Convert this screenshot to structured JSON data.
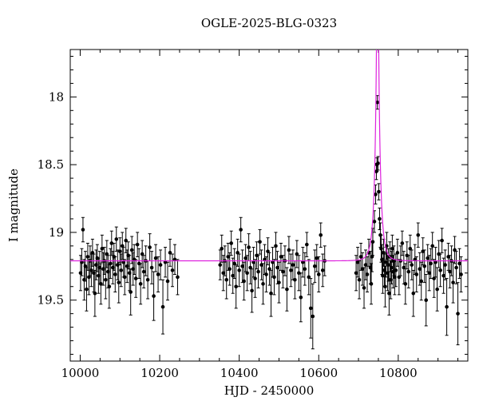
{
  "chart_data": {
    "type": "scatter",
    "title": "OGLE-2025-BLG-0323",
    "xlabel": "HJD - 2450000",
    "ylabel": "I magnitude",
    "xlim": [
      9975,
      10975
    ],
    "ylim_mag": [
      19.95,
      17.65
    ],
    "x_major_ticks": [
      10000,
      10200,
      10400,
      10600,
      10800
    ],
    "x_minor_step": 50,
    "y_major_ticks": [
      18,
      18.5,
      19,
      19.5
    ],
    "y_minor_step": 0.1,
    "grid": false,
    "legend": "none",
    "point_color": "#000000",
    "model_color": "#dd22dd",
    "model": {
      "type": "pspl-microlensing",
      "t0": 10748,
      "tE": 12,
      "u0": 0.02,
      "baseline_mag": 19.21
    },
    "points": [
      [
        10001,
        19.3,
        0.13
      ],
      [
        10004,
        19.22,
        0.1
      ],
      [
        10007,
        18.98,
        0.09
      ],
      [
        10010,
        19.35,
        0.15
      ],
      [
        10013,
        19.25,
        0.11
      ],
      [
        10016,
        19.42,
        0.16
      ],
      [
        10019,
        19.18,
        0.1
      ],
      [
        10022,
        19.33,
        0.13
      ],
      [
        10025,
        19.21,
        0.11
      ],
      [
        10028,
        19.28,
        0.12
      ],
      [
        10031,
        19.15,
        0.1
      ],
      [
        10034,
        19.3,
        0.14
      ],
      [
        10037,
        19.45,
        0.17
      ],
      [
        10040,
        19.24,
        0.11
      ],
      [
        10043,
        19.19,
        0.1
      ],
      [
        10046,
        19.32,
        0.13
      ],
      [
        10049,
        19.26,
        0.12
      ],
      [
        10052,
        19.38,
        0.15
      ],
      [
        10055,
        19.12,
        0.1
      ],
      [
        10058,
        19.27,
        0.12
      ],
      [
        10061,
        19.21,
        0.1
      ],
      [
        10064,
        19.35,
        0.14
      ],
      [
        10067,
        19.16,
        0.1
      ],
      [
        10070,
        19.29,
        0.12
      ],
      [
        10073,
        19.4,
        0.16
      ],
      [
        10076,
        19.23,
        0.11
      ],
      [
        10079,
        19.08,
        0.09
      ],
      [
        10082,
        19.26,
        0.12
      ],
      [
        10085,
        19.18,
        0.1
      ],
      [
        10088,
        19.31,
        0.13
      ],
      [
        10091,
        19.05,
        0.09
      ],
      [
        10094,
        19.24,
        0.11
      ],
      [
        10097,
        19.37,
        0.15
      ],
      [
        10100,
        19.14,
        0.1
      ],
      [
        10103,
        19.28,
        0.12
      ],
      [
        10106,
        19.1,
        0.1
      ],
      [
        10109,
        19.22,
        0.11
      ],
      [
        10112,
        19.33,
        0.13
      ],
      [
        10115,
        19.06,
        0.09
      ],
      [
        10118,
        19.25,
        0.12
      ],
      [
        10121,
        19.17,
        0.1
      ],
      [
        10124,
        19.3,
        0.13
      ],
      [
        10127,
        19.44,
        0.17
      ],
      [
        10130,
        19.13,
        0.1
      ],
      [
        10133,
        19.27,
        0.12
      ],
      [
        10136,
        19.2,
        0.11
      ],
      [
        10140,
        19.34,
        0.14
      ],
      [
        10144,
        19.09,
        0.09
      ],
      [
        10148,
        19.23,
        0.11
      ],
      [
        10152,
        19.38,
        0.15
      ],
      [
        10156,
        19.16,
        0.1
      ],
      [
        10160,
        19.29,
        0.12
      ],
      [
        10165,
        19.21,
        0.11
      ],
      [
        10170,
        19.35,
        0.14
      ],
      [
        10175,
        19.11,
        0.1
      ],
      [
        10180,
        19.26,
        0.12
      ],
      [
        10185,
        19.47,
        0.18
      ],
      [
        10190,
        19.19,
        0.1
      ],
      [
        10196,
        19.31,
        0.13
      ],
      [
        10202,
        19.24,
        0.11
      ],
      [
        10208,
        19.55,
        0.2
      ],
      [
        10214,
        19.22,
        0.11
      ],
      [
        10220,
        19.36,
        0.14
      ],
      [
        10226,
        19.15,
        0.1
      ],
      [
        10232,
        19.28,
        0.12
      ],
      [
        10238,
        19.2,
        0.11
      ],
      [
        10245,
        19.33,
        0.13
      ],
      [
        10352,
        19.24,
        0.11
      ],
      [
        10356,
        19.12,
        0.1
      ],
      [
        10360,
        19.3,
        0.13
      ],
      [
        10364,
        19.21,
        0.11
      ],
      [
        10368,
        19.35,
        0.14
      ],
      [
        10372,
        19.18,
        0.1
      ],
      [
        10376,
        19.27,
        0.12
      ],
      [
        10380,
        19.08,
        0.09
      ],
      [
        10384,
        19.32,
        0.13
      ],
      [
        10388,
        19.23,
        0.11
      ],
      [
        10392,
        19.4,
        0.16
      ],
      [
        10396,
        19.15,
        0.1
      ],
      [
        10400,
        19.28,
        0.12
      ],
      [
        10404,
        18.98,
        0.09
      ],
      [
        10408,
        19.25,
        0.12
      ],
      [
        10412,
        19.36,
        0.14
      ],
      [
        10416,
        19.19,
        0.1
      ],
      [
        10420,
        19.3,
        0.13
      ],
      [
        10424,
        19.11,
        0.1
      ],
      [
        10428,
        19.26,
        0.12
      ],
      [
        10432,
        19.43,
        0.16
      ],
      [
        10436,
        19.22,
        0.11
      ],
      [
        10440,
        19.34,
        0.14
      ],
      [
        10444,
        19.17,
        0.1
      ],
      [
        10448,
        19.29,
        0.12
      ],
      [
        10452,
        19.07,
        0.09
      ],
      [
        10456,
        19.24,
        0.11
      ],
      [
        10460,
        19.38,
        0.15
      ],
      [
        10464,
        19.2,
        0.11
      ],
      [
        10468,
        19.31,
        0.13
      ],
      [
        10472,
        19.14,
        0.1
      ],
      [
        10476,
        19.27,
        0.12
      ],
      [
        10480,
        19.45,
        0.17
      ],
      [
        10484,
        19.22,
        0.11
      ],
      [
        10488,
        19.33,
        0.13
      ],
      [
        10492,
        19.1,
        0.1
      ],
      [
        10496,
        19.26,
        0.12
      ],
      [
        10500,
        19.37,
        0.15
      ],
      [
        10505,
        19.18,
        0.1
      ],
      [
        10510,
        19.29,
        0.12
      ],
      [
        10515,
        19.21,
        0.11
      ],
      [
        10520,
        19.42,
        0.16
      ],
      [
        10525,
        19.13,
        0.1
      ],
      [
        10530,
        19.28,
        0.12
      ],
      [
        10535,
        19.24,
        0.11
      ],
      [
        10540,
        19.35,
        0.14
      ],
      [
        10545,
        19.16,
        0.1
      ],
      [
        10550,
        19.3,
        0.13
      ],
      [
        10555,
        19.48,
        0.18
      ],
      [
        10560,
        19.22,
        0.11
      ],
      [
        10565,
        19.27,
        0.12
      ],
      [
        10570,
        19.09,
        0.09
      ],
      [
        10575,
        19.33,
        0.13
      ],
      [
        10580,
        19.56,
        0.22
      ],
      [
        10585,
        19.62,
        0.24
      ],
      [
        10590,
        19.25,
        0.12
      ],
      [
        10595,
        19.19,
        0.1
      ],
      [
        10600,
        19.31,
        0.13
      ],
      [
        10605,
        19.02,
        0.09
      ],
      [
        10610,
        19.28,
        0.12
      ],
      [
        10615,
        19.21,
        0.11
      ],
      [
        10694,
        19.3,
        0.13
      ],
      [
        10698,
        19.22,
        0.11
      ],
      [
        10702,
        19.35,
        0.14
      ],
      [
        10706,
        19.18,
        0.1
      ],
      [
        10710,
        19.27,
        0.12
      ],
      [
        10714,
        19.41,
        0.15
      ],
      [
        10718,
        19.24,
        0.11
      ],
      [
        10722,
        19.31,
        0.13
      ],
      [
        10726,
        19.15,
        0.1
      ],
      [
        10730,
        19.26,
        0.12
      ],
      [
        10732,
        19.38,
        0.15
      ],
      [
        10734,
        19.18,
        0.11
      ],
      [
        10736,
        19.07,
        0.1
      ],
      [
        10740,
        18.92,
        0.08
      ],
      [
        10743,
        18.72,
        0.07
      ],
      [
        10745,
        18.55,
        0.06
      ],
      [
        10746.5,
        18.5,
        0.05
      ],
      [
        10747.5,
        18.04,
        0.05
      ],
      [
        10749,
        18.49,
        0.05
      ],
      [
        10751,
        18.7,
        0.06
      ],
      [
        10753,
        18.9,
        0.08
      ],
      [
        10755,
        19.02,
        0.09
      ],
      [
        10757,
        19.12,
        0.1
      ],
      [
        10759,
        19.2,
        0.11
      ],
      [
        10761,
        19.32,
        0.13
      ],
      [
        10763,
        19.15,
        0.1
      ],
      [
        10765,
        19.28,
        0.12
      ],
      [
        10767,
        19.4,
        0.15
      ],
      [
        10769,
        19.22,
        0.11
      ],
      [
        10771,
        19.1,
        0.1
      ],
      [
        10773,
        19.3,
        0.13
      ],
      [
        10775,
        19.24,
        0.12
      ],
      [
        10777,
        19.45,
        0.16
      ],
      [
        10779,
        19.18,
        0.11
      ],
      [
        10781,
        19.35,
        0.14
      ],
      [
        10783,
        19.26,
        0.12
      ],
      [
        10785,
        19.12,
        0.1
      ],
      [
        10787,
        19.29,
        0.12
      ],
      [
        10789,
        19.21,
        0.11
      ],
      [
        10791,
        19.33,
        0.13
      ],
      [
        10794,
        19.28,
        0.12
      ],
      [
        10798,
        19.15,
        0.1
      ],
      [
        10802,
        19.33,
        0.13
      ],
      [
        10806,
        19.21,
        0.11
      ],
      [
        10810,
        19.08,
        0.09
      ],
      [
        10814,
        19.26,
        0.12
      ],
      [
        10818,
        19.38,
        0.15
      ],
      [
        10822,
        19.17,
        0.1
      ],
      [
        10826,
        19.29,
        0.12
      ],
      [
        10830,
        19.12,
        0.1
      ],
      [
        10834,
        19.24,
        0.11
      ],
      [
        10838,
        19.45,
        0.17
      ],
      [
        10842,
        19.2,
        0.11
      ],
      [
        10846,
        19.31,
        0.13
      ],
      [
        10850,
        19.02,
        0.09
      ],
      [
        10854,
        19.27,
        0.12
      ],
      [
        10858,
        19.36,
        0.14
      ],
      [
        10862,
        19.14,
        0.1
      ],
      [
        10866,
        19.25,
        0.12
      ],
      [
        10870,
        19.5,
        0.19
      ],
      [
        10874,
        19.19,
        0.1
      ],
      [
        10878,
        19.3,
        0.13
      ],
      [
        10882,
        19.23,
        0.11
      ],
      [
        10886,
        19.1,
        0.1
      ],
      [
        10890,
        19.34,
        0.14
      ],
      [
        10894,
        19.22,
        0.11
      ],
      [
        10898,
        19.42,
        0.16
      ],
      [
        10902,
        19.16,
        0.1
      ],
      [
        10906,
        19.28,
        0.12
      ],
      [
        10910,
        19.06,
        0.09
      ],
      [
        10914,
        19.32,
        0.13
      ],
      [
        10918,
        19.24,
        0.11
      ],
      [
        10922,
        19.55,
        0.21
      ],
      [
        10926,
        19.18,
        0.1
      ],
      [
        10930,
        19.29,
        0.12
      ],
      [
        10934,
        19.21,
        0.11
      ],
      [
        10938,
        19.37,
        0.15
      ],
      [
        10942,
        19.13,
        0.1
      ],
      [
        10946,
        19.26,
        0.12
      ],
      [
        10950,
        19.6,
        0.23
      ],
      [
        10954,
        19.23,
        0.11
      ],
      [
        10958,
        19.31,
        0.13
      ]
    ]
  }
}
